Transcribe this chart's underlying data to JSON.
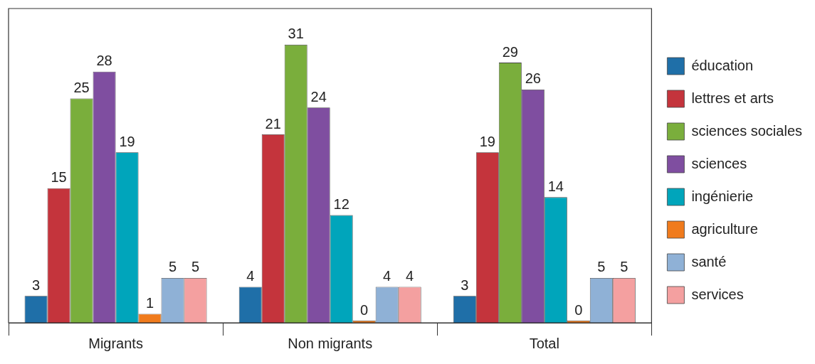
{
  "chart_data": {
    "type": "bar",
    "categories": [
      "Migrants",
      "Non migrants",
      "Total"
    ],
    "series": [
      {
        "name": "éducation",
        "color": "#1f6fa8",
        "values": [
          3,
          4,
          3
        ]
      },
      {
        "name": "lettres et arts",
        "color": "#c4343c",
        "values": [
          15,
          21,
          19
        ]
      },
      {
        "name": "sciences sociales",
        "color": "#7aae3c",
        "values": [
          25,
          31,
          29
        ]
      },
      {
        "name": "sciences",
        "color": "#7f4ea0",
        "values": [
          28,
          24,
          26
        ]
      },
      {
        "name": "ingénierie",
        "color": "#00a5bb",
        "values": [
          19,
          12,
          14
        ]
      },
      {
        "name": "agriculture",
        "color": "#f07b1c",
        "values": [
          1,
          0,
          0
        ]
      },
      {
        "name": "santé",
        "color": "#8fb1d6",
        "values": [
          5,
          4,
          5
        ]
      },
      {
        "name": "services",
        "color": "#f4a0a0",
        "values": [
          5,
          4,
          5
        ]
      }
    ],
    "data_labels": true,
    "legend": "right",
    "grid": false
  }
}
